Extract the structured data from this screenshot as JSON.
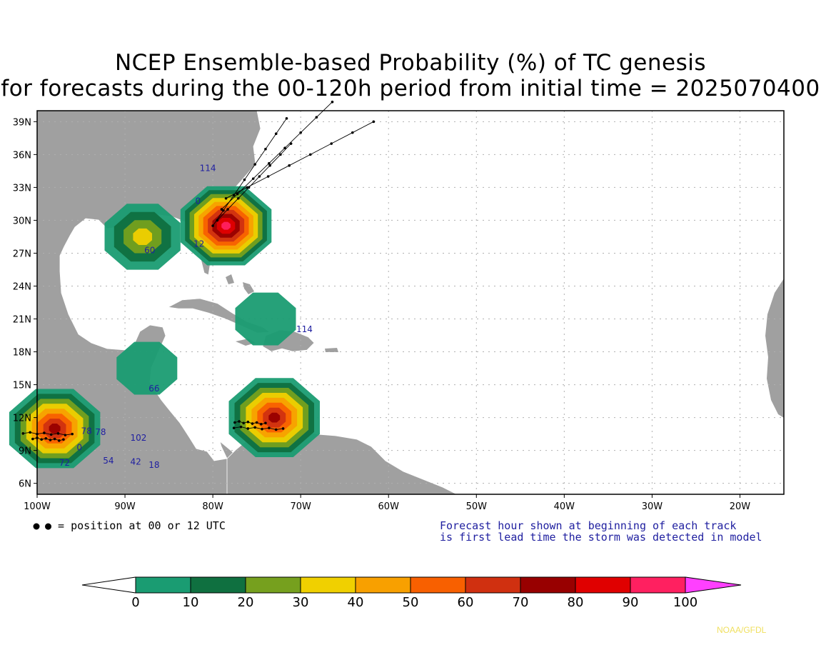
{
  "title": {
    "line1": "NCEP Ensemble-based Probability (%) of TC genesis",
    "line2": "for forecasts during the 00-120h period from initial time = 2025070400"
  },
  "map": {
    "lat_labels": [
      "39N",
      "36N",
      "33N",
      "30N",
      "27N",
      "24N",
      "21N",
      "18N",
      "15N",
      "12N",
      "9N",
      "6N"
    ],
    "lat_values": [
      39,
      36,
      33,
      30,
      27,
      24,
      21,
      18,
      15,
      12,
      9,
      6
    ],
    "lon_labels": [
      "100W",
      "90W",
      "80W",
      "70W",
      "60W",
      "50W",
      "40W",
      "30W",
      "20W"
    ],
    "lon_values": [
      -100,
      -90,
      -80,
      -70,
      -60,
      -50,
      -40,
      -30,
      -20
    ],
    "extent": {
      "lon_min": -100,
      "lon_max": -15,
      "lat_min": 5,
      "lat_max": 40
    },
    "land_color": "#a0a0a0",
    "ocean_color": "#ffffff",
    "border_color": "#ffffff"
  },
  "probability_regions": [
    {
      "name": "gulf-of-mexico",
      "peak_percent": 40,
      "center_lon": -88,
      "center_lat": 28.5
    },
    {
      "name": "southeast-us-coast",
      "peak_percent": 100,
      "center_lon": -78.5,
      "center_lat": 29.5
    },
    {
      "name": "hispaniola",
      "peak_percent": 10,
      "center_lon": -74,
      "center_lat": 21
    },
    {
      "name": "belize",
      "peak_percent": 10,
      "center_lon": -87.5,
      "center_lat": 16.5
    },
    {
      "name": "eastern-pacific",
      "peak_percent": 80,
      "center_lon": -98,
      "center_lat": 11
    },
    {
      "name": "southern-caribbean",
      "peak_percent": 80,
      "center_lon": -73,
      "center_lat": 12
    }
  ],
  "track_labels": [
    {
      "text": "114",
      "lon": -81.5,
      "lat": 34.5
    },
    {
      "text": "0",
      "lon": -82,
      "lat": 31.5
    },
    {
      "text": "60",
      "lon": -87.8,
      "lat": 27
    },
    {
      "text": "12",
      "lon": -82.2,
      "lat": 27.6
    },
    {
      "text": "114",
      "lon": -70.5,
      "lat": 19.8
    },
    {
      "text": "66",
      "lon": -87.3,
      "lat": 14.4
    },
    {
      "text": "78",
      "lon": -95,
      "lat": 10.5
    },
    {
      "text": "78",
      "lon": -93.4,
      "lat": 10.4
    },
    {
      "text": "102",
      "lon": -89.4,
      "lat": 9.9
    },
    {
      "text": "54",
      "lon": -92.5,
      "lat": 7.8
    },
    {
      "text": "42",
      "lon": -89.4,
      "lat": 7.7
    },
    {
      "text": "18",
      "lon": -87.3,
      "lat": 7.4
    },
    {
      "text": "72",
      "lon": -97.5,
      "lat": 7.6
    },
    {
      "text": "0",
      "lon": -95.5,
      "lat": 9
    }
  ],
  "legend_position": "● = position at 00 or 12 UTC",
  "forecast_note": {
    "line1": "Forecast hour shown at beginning of each track",
    "line2": "is first lead time the storm was detected in model"
  },
  "colorbar": {
    "labels": [
      "0",
      "10",
      "20",
      "30",
      "40",
      "50",
      "60",
      "70",
      "80",
      "90",
      "100"
    ],
    "colors": [
      "#1a9c72",
      "#0f7040",
      "#76a01e",
      "#f0d000",
      "#f8a000",
      "#f86000",
      "#d03010",
      "#980000",
      "#e00000",
      "#ff2060"
    ],
    "under_color": "#ffffff",
    "over_color": "#ff40ff"
  },
  "credit": "NOAA/GFDL",
  "colors": {
    "track_color": "#000000",
    "label_color": "#2020a0",
    "note_color": "#2020a0",
    "credit_color": "#f0e060",
    "grid_color": "#b0b0b0"
  }
}
